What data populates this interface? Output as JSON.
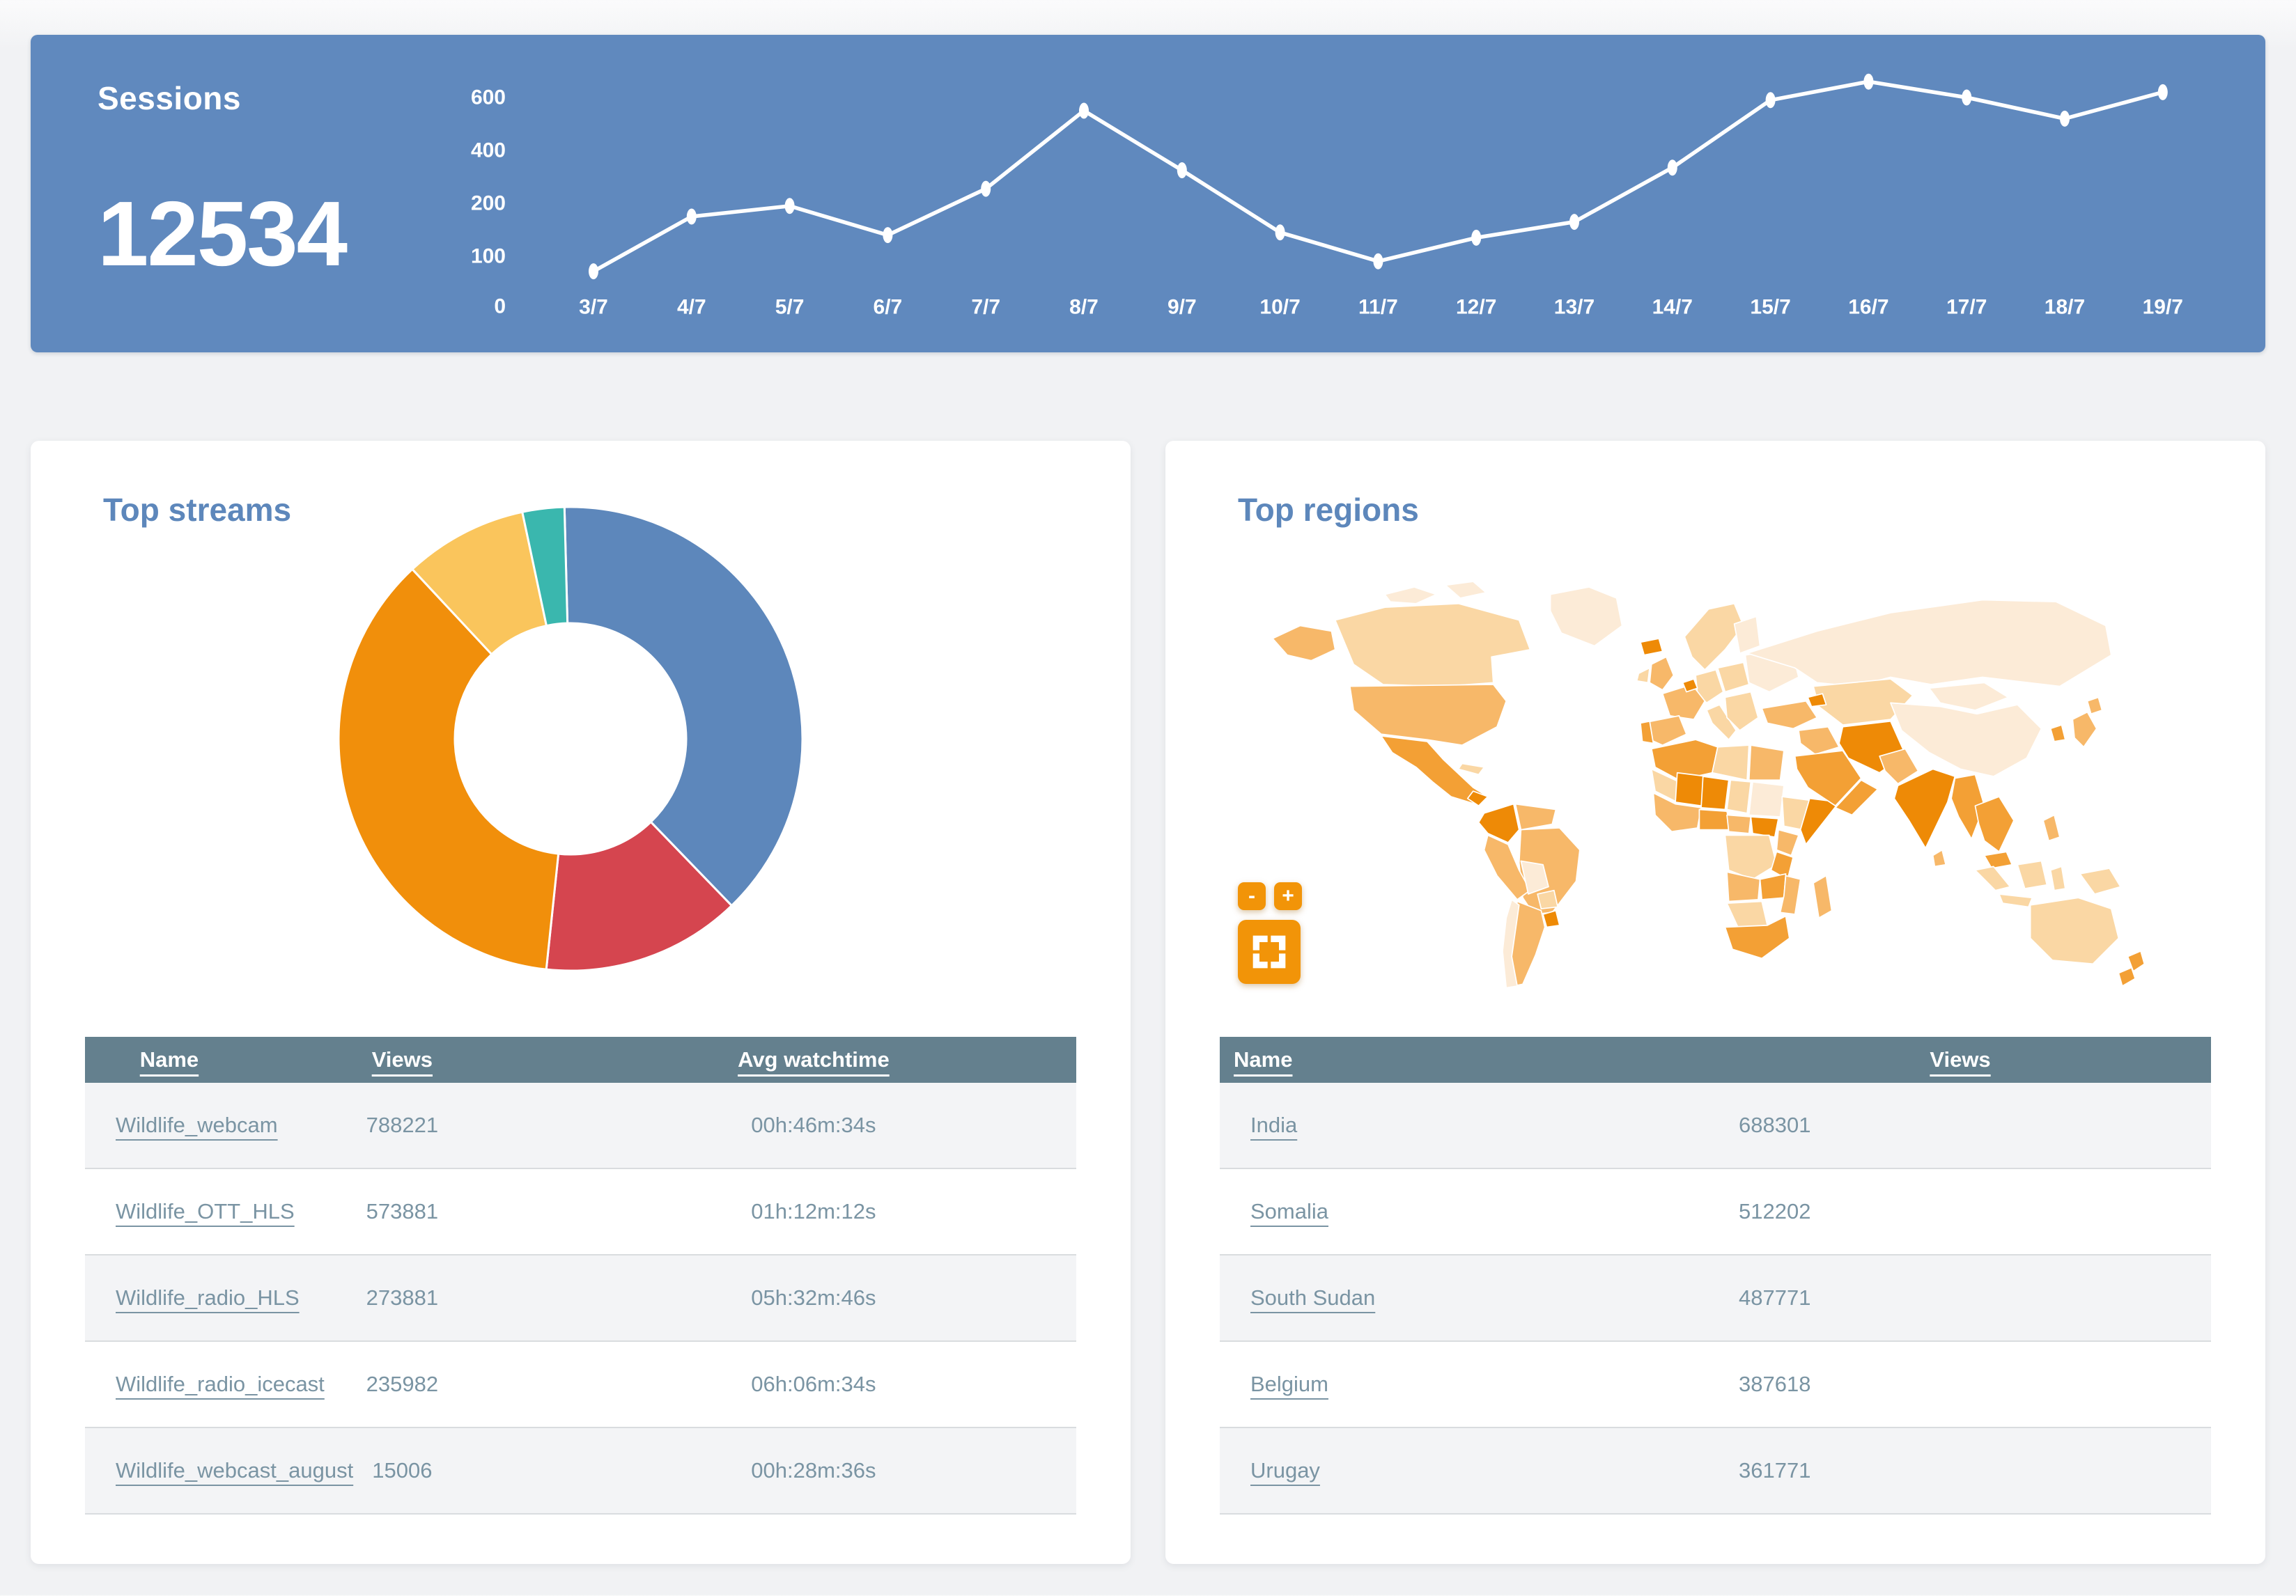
{
  "banner": {
    "title": "Sessions",
    "total": "12534"
  },
  "chart_data": [
    {
      "id": "sessions_over_time",
      "type": "line",
      "title": "Sessions",
      "x": [
        "3/7",
        "4/7",
        "5/7",
        "6/7",
        "7/7",
        "8/7",
        "9/7",
        "10/7",
        "11/7",
        "12/7",
        "13/7",
        "14/7",
        "15/7",
        "16/7",
        "17/7",
        "18/7",
        "19/7"
      ],
      "values": [
        70,
        175,
        195,
        140,
        255,
        550,
        325,
        145,
        90,
        135,
        165,
        335,
        590,
        660,
        600,
        520,
        620
      ],
      "y_ticks": [
        0,
        100,
        200,
        400,
        600
      ],
      "ylim": [
        0,
        700
      ],
      "grid": false,
      "legend": "none",
      "line_color": "#ffffff",
      "marker": "dot"
    },
    {
      "id": "top_streams_share",
      "type": "pie",
      "subtype": "donut",
      "start_angle_deg": -1.5,
      "legend": "none",
      "segments": [
        {
          "color": "#5d87bb",
          "sweep_deg": 137.5,
          "percent": 38.2
        },
        {
          "color": "#d5454f",
          "sweep_deg": 50.0,
          "percent": 13.9
        },
        {
          "color": "#f18f0b",
          "sweep_deg": 131.0,
          "percent": 36.4
        },
        {
          "color": "#fac55c",
          "sweep_deg": 31.0,
          "percent": 8.6
        },
        {
          "color": "#3ab7ae",
          "sweep_deg": 10.5,
          "percent": 2.9
        }
      ]
    },
    {
      "id": "regions_choropleth",
      "type": "choropleth",
      "palette": [
        "#fcebd7",
        "#fad7a4",
        "#f7b869",
        "#f3a035",
        "#ee8a06"
      ],
      "legend": "none"
    }
  ],
  "top_streams": {
    "title": "Top streams",
    "table": {
      "headers": [
        "Name",
        "Views",
        "Avg watchtime"
      ],
      "rows": [
        {
          "name": "Wildlife_webcam",
          "views": "788221",
          "watchtime": "00h:46m:34s"
        },
        {
          "name": "Wildlife_OTT_HLS",
          "views": "573881",
          "watchtime": "01h:12m:12s"
        },
        {
          "name": "Wildlife_radio_HLS",
          "views": "273881",
          "watchtime": "05h:32m:46s"
        },
        {
          "name": "Wildlife_radio_icecast",
          "views": "235982",
          "watchtime": "06h:06m:34s"
        },
        {
          "name": "Wildlife_webcast_august",
          "views": "15006",
          "watchtime": "00h:28m:36s"
        }
      ]
    }
  },
  "top_regions": {
    "title": "Top regions",
    "map_controls": {
      "zoom_out": "-",
      "zoom_in": "+"
    },
    "table": {
      "headers": [
        "Name",
        "Views"
      ],
      "rows": [
        {
          "name": "India",
          "views": "688301"
        },
        {
          "name": "Somalia",
          "views": "512202"
        },
        {
          "name": "South Sudan",
          "views": "487771"
        },
        {
          "name": "Belgium",
          "views": "387618"
        },
        {
          "name": "Urugay",
          "views": "361771"
        }
      ]
    }
  },
  "theme": {
    "page_bg": "#f1f2f4",
    "banner_bg": "#6089be",
    "banner_text": "#ffffff",
    "card_bg": "#ffffff",
    "card_title": "#5d87bb",
    "table_header_bg": "#64808e",
    "table_header_text": "#ffffff",
    "table_text": "#7a94a3",
    "row_alt_bg": "#f3f4f6",
    "row_divider": "#d9dcdf",
    "accent_orange": "#f29408",
    "chart_line": "#ffffff"
  }
}
